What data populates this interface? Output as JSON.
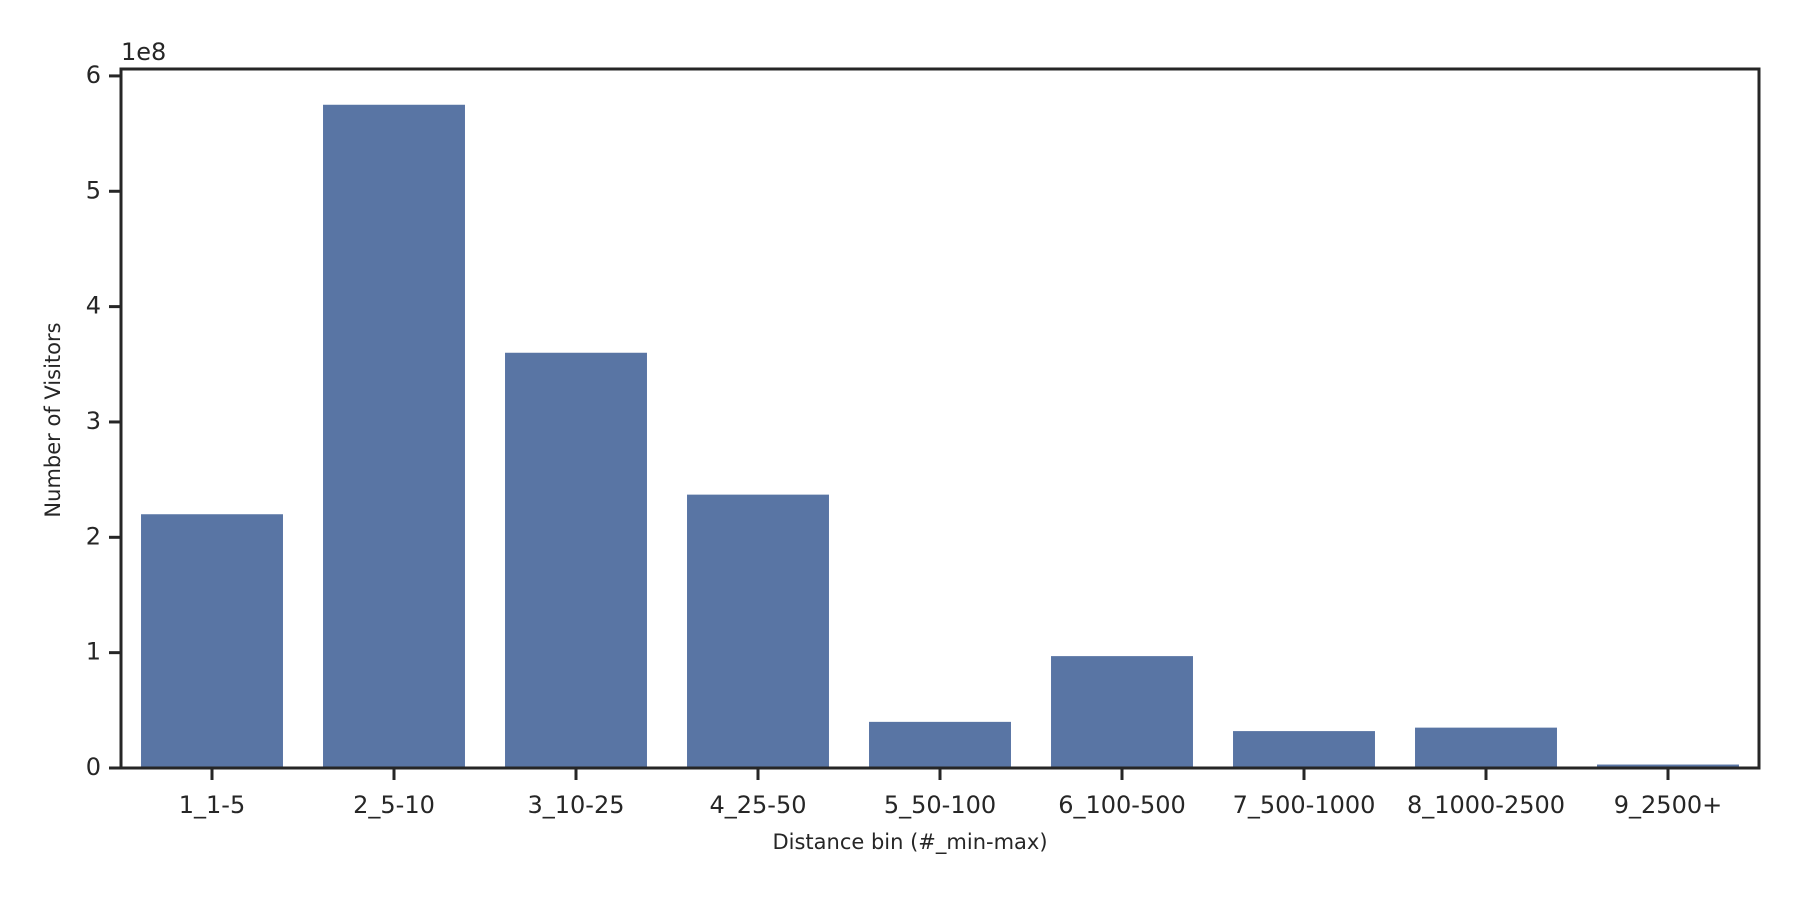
{
  "chart_data": {
    "type": "bar",
    "x_label": "Distance bin (#_min-max)",
    "y_label": "Number of Visitors",
    "y_offset_label": "1e8",
    "categories": [
      "1_1-5",
      "2_5-10",
      "3_10-25",
      "4_25-50",
      "5_50-100",
      "6_100-500",
      "7_500-1000",
      "8_1000-2500",
      "9_2500+"
    ],
    "values": [
      2.2,
      5.75,
      3.6,
      2.37,
      0.4,
      0.97,
      0.32,
      0.35,
      0.03
    ],
    "color": "#5975a4",
    "ylim": [
      0,
      6.06
    ],
    "yticks": [
      0,
      1,
      2,
      3,
      4,
      5,
      6
    ],
    "grid": false
  }
}
